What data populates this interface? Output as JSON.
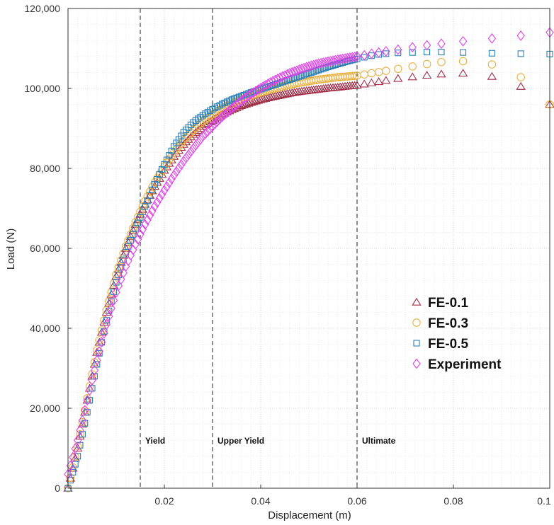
{
  "chart_data": {
    "type": "scatter",
    "title": "",
    "xlabel": "Displacement (m)",
    "ylabel": "Load (N)",
    "xlim": [
      0,
      0.1
    ],
    "ylim": [
      0,
      120000
    ],
    "grid": true,
    "legend_placement": "lower-right",
    "x_ticks": [
      {
        "value": 0.02,
        "label": "0.02"
      },
      {
        "value": 0.04,
        "label": "0.04"
      },
      {
        "value": 0.06,
        "label": "0.06"
      },
      {
        "value": 0.08,
        "label": "0.08"
      },
      {
        "value": 0.1,
        "label": "0.1"
      }
    ],
    "y_ticks": [
      {
        "value": 0,
        "label": "0"
      },
      {
        "value": 20000,
        "label": "20,000"
      },
      {
        "value": 40000,
        "label": "40,000"
      },
      {
        "value": 60000,
        "label": "60,000"
      },
      {
        "value": 80000,
        "label": "80,000"
      },
      {
        "value": 100000,
        "label": "100,000"
      },
      {
        "value": 120000,
        "label": "120,000"
      }
    ],
    "reference_lines": [
      {
        "x": 0.015,
        "label": "Yield"
      },
      {
        "x": 0.03,
        "label": "Upper Yield"
      },
      {
        "x": 0.06,
        "label": "Ultimate"
      }
    ],
    "series": [
      {
        "name": "FE-0.1",
        "marker": "triangle",
        "color": "#a0304a",
        "x": [
          0,
          0.002,
          0.004,
          0.006,
          0.008,
          0.01,
          0.012,
          0.014,
          0.016,
          0.018,
          0.02,
          0.022,
          0.024,
          0.026,
          0.028,
          0.03,
          0.032,
          0.034,
          0.036,
          0.038,
          0.04,
          0.042,
          0.044,
          0.046,
          0.048,
          0.05,
          0.052,
          0.054,
          0.056,
          0.058,
          0.06,
          0.0615,
          0.063,
          0.0645,
          0.066,
          0.0685,
          0.0715,
          0.0745,
          0.0775,
          0.082,
          0.088,
          0.094,
          0.1
        ],
        "y": [
          0,
          10000,
          22000,
          34000,
          44000,
          53000,
          60000,
          66000,
          71000,
          75500,
          79500,
          83000,
          86000,
          88500,
          90500,
          92000,
          93500,
          94700,
          95700,
          96500,
          97200,
          97800,
          98300,
          98800,
          99200,
          99500,
          99800,
          100100,
          100300,
          100600,
          100800,
          101100,
          101400,
          101700,
          102000,
          102500,
          102900,
          103300,
          103600,
          103800,
          103000,
          100500,
          96000
        ]
      },
      {
        "name": "FE-0.3",
        "marker": "circle",
        "color": "#e8b040",
        "x": [
          0,
          0.002,
          0.004,
          0.006,
          0.008,
          0.01,
          0.012,
          0.014,
          0.016,
          0.018,
          0.02,
          0.022,
          0.024,
          0.026,
          0.028,
          0.03,
          0.032,
          0.034,
          0.036,
          0.038,
          0.04,
          0.042,
          0.044,
          0.046,
          0.048,
          0.05,
          0.052,
          0.054,
          0.056,
          0.058,
          0.06,
          0.0615,
          0.063,
          0.0645,
          0.066,
          0.0685,
          0.0715,
          0.0745,
          0.0775,
          0.082,
          0.088,
          0.094,
          0.1
        ],
        "y": [
          0,
          10500,
          22500,
          34500,
          44500,
          53500,
          60500,
          66500,
          71800,
          76500,
          80500,
          84000,
          87000,
          89600,
          91800,
          93500,
          95000,
          96200,
          97300,
          98200,
          99000,
          99700,
          100300,
          100900,
          101400,
          101800,
          102200,
          102500,
          102800,
          103000,
          103200,
          103500,
          103800,
          104100,
          104400,
          104900,
          105500,
          106100,
          106600,
          106800,
          106000,
          102800,
          96000
        ]
      },
      {
        "name": "FE-0.5",
        "marker": "square",
        "color": "#2a7fb5",
        "x": [
          0,
          0.002,
          0.004,
          0.006,
          0.008,
          0.01,
          0.012,
          0.014,
          0.016,
          0.018,
          0.02,
          0.022,
          0.024,
          0.026,
          0.028,
          0.03,
          0.032,
          0.034,
          0.036,
          0.038,
          0.04,
          0.042,
          0.044,
          0.046,
          0.048,
          0.05,
          0.052,
          0.054,
          0.056,
          0.058,
          0.06,
          0.0615,
          0.063,
          0.0645,
          0.066,
          0.0685,
          0.0715,
          0.0745,
          0.0775,
          0.082,
          0.088,
          0.094,
          0.1
        ],
        "y": [
          0,
          8000,
          19000,
          31000,
          42000,
          51500,
          59000,
          65000,
          70500,
          76000,
          81000,
          85500,
          89000,
          91500,
          93300,
          94800,
          96100,
          97200,
          98100,
          99000,
          99800,
          100600,
          101400,
          102200,
          103000,
          103800,
          104600,
          105400,
          106100,
          106800,
          107400,
          107800,
          108200,
          108500,
          108700,
          108900,
          109000,
          109100,
          109100,
          109000,
          108800,
          108700,
          108600
        ]
      },
      {
        "name": "Experiment",
        "marker": "diamond",
        "color": "#e040e8",
        "x": [
          0,
          0.002,
          0.004,
          0.006,
          0.008,
          0.01,
          0.012,
          0.014,
          0.016,
          0.018,
          0.02,
          0.022,
          0.024,
          0.026,
          0.028,
          0.03,
          0.032,
          0.034,
          0.036,
          0.038,
          0.04,
          0.042,
          0.044,
          0.046,
          0.048,
          0.05,
          0.052,
          0.054,
          0.056,
          0.058,
          0.06,
          0.0615,
          0.063,
          0.0645,
          0.066,
          0.0685,
          0.0715,
          0.0745,
          0.0775,
          0.082,
          0.088,
          0.094,
          0.1
        ],
        "y": [
          3500,
          12000,
          22000,
          32000,
          41000,
          49000,
          55500,
          61000,
          66000,
          70500,
          74500,
          78300,
          81800,
          85000,
          88000,
          90500,
          92900,
          95000,
          96900,
          98600,
          100100,
          101500,
          102700,
          103800,
          104700,
          105500,
          106200,
          106700,
          107200,
          107600,
          108000,
          108300,
          108700,
          109000,
          109300,
          109700,
          110300,
          110800,
          111200,
          111800,
          112500,
          113200,
          114000
        ]
      }
    ]
  }
}
